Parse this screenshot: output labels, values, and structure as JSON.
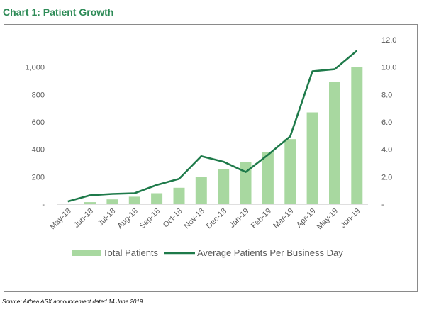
{
  "title": "Chart 1: Patient Growth",
  "source": "Source: Althea ASX announcement dated 14 June 2019",
  "colors": {
    "bar": "#a8d8a0",
    "line": "#1e7a4a",
    "title": "#2e8b57",
    "axis_text": "#595959"
  },
  "chart_data": {
    "type": "bar",
    "categories": [
      "May-18",
      "Jun-18",
      "Jul-18",
      "Aug-18",
      "Sep-18",
      "Oct-18",
      "Nov-18",
      "Dec-18",
      "Jan-19",
      "Feb-19",
      "Mar-19",
      "Apr-19",
      "May-19",
      "Jun-19"
    ],
    "series": [
      {
        "name": "Total Patients",
        "type": "bar",
        "axis": "left",
        "values": [
          0,
          15,
          35,
          55,
          80,
          120,
          200,
          255,
          305,
          380,
          475,
          670,
          895,
          1000
        ]
      },
      {
        "name": "Average Patients Per Business Day",
        "type": "line",
        "axis": "right",
        "values": [
          0.2,
          0.65,
          0.75,
          0.8,
          1.4,
          1.85,
          3.5,
          3.1,
          2.35,
          3.6,
          4.95,
          9.7,
          9.85,
          11.2
        ]
      }
    ],
    "y_left": {
      "ylim": [
        0,
        1200
      ],
      "ticks": [
        "-",
        "200",
        "400",
        "600",
        "800",
        "1,000"
      ],
      "tick_values": [
        0,
        200,
        400,
        600,
        800,
        1000
      ]
    },
    "y_right": {
      "ylim": [
        0,
        12
      ],
      "ticks": [
        "-",
        "2.0",
        "4.0",
        "6.0",
        "8.0",
        "10.0",
        "12.0"
      ],
      "tick_values": [
        0,
        2,
        4,
        6,
        8,
        10,
        12
      ]
    },
    "legend": {
      "placement": "bottom",
      "items": [
        "Total Patients",
        "Average Patients Per Business Day"
      ]
    },
    "grid": false
  }
}
